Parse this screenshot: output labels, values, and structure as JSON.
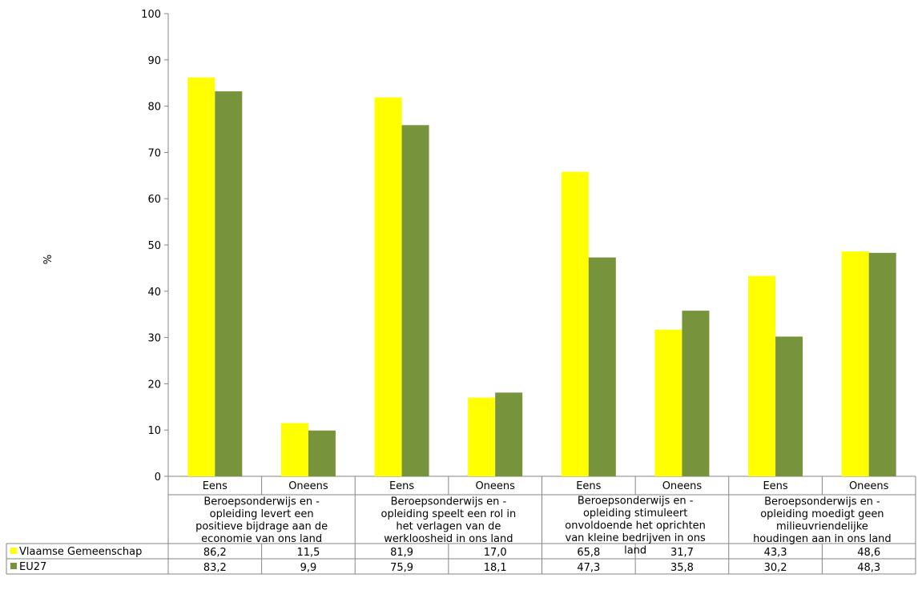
{
  "chart_data": {
    "type": "bar",
    "ylabel": "%",
    "ylim": [
      0,
      100
    ],
    "yticks": [
      0,
      10,
      20,
      30,
      40,
      50,
      60,
      70,
      80,
      90,
      100
    ],
    "groups": [
      {
        "label": "Beroepsonderwijs en -opleiding levert een positieve bijdrage aan de economie van ons land",
        "lines": [
          "Beroepsonderwijs en -",
          "opleiding levert een",
          "positieve bijdrage aan de",
          "economie van ons land"
        ]
      },
      {
        "label": "Beroepsonderwijs en -opleiding speelt een rol in het verlagen van de werkloosheid in ons land",
        "lines": [
          "Beroepsonderwijs en -",
          "opleiding speelt een rol in",
          "het verlagen van de",
          "werkloosheid in ons land"
        ]
      },
      {
        "label": "Beroepsonderwijs en -opleiding stimuleert onvoldoende het oprichten van kleine bedrijven in ons land",
        "lines": [
          "Beroepsonderwijs en -",
          "opleiding stimuleert",
          "onvoldoende het oprichten",
          "van kleine bedrijven in ons",
          "land"
        ]
      },
      {
        "label": "Beroepsonderwijs en -opleiding moedigt geen milieuvriendelijke houdingen aan in ons land",
        "lines": [
          "Beroepsonderwijs en -",
          "opleiding moedigt geen",
          "milieuvriendelijke",
          "houdingen aan in ons land"
        ]
      }
    ],
    "categories": [
      "Eens",
      "Oneens",
      "Eens",
      "Oneens",
      "Eens",
      "Oneens",
      "Eens",
      "Oneens"
    ],
    "series": [
      {
        "name": "Vlaamse Gemeenschap",
        "color": "#ffff00",
        "values": [
          86.2,
          11.5,
          81.9,
          17.0,
          65.8,
          31.7,
          43.3,
          48.6
        ],
        "labels": [
          "86,2",
          "11,5",
          "81,9",
          "17,0",
          "65,8",
          "31,7",
          "43,3",
          "48,6"
        ]
      },
      {
        "name": "EU27",
        "color": "#77933c",
        "values": [
          83.2,
          9.9,
          75.9,
          18.1,
          47.3,
          35.8,
          30.2,
          48.3
        ],
        "labels": [
          "83,2",
          "9,9",
          "75,9",
          "18,1",
          "47,3",
          "35,8",
          "30,2",
          "48,3"
        ]
      }
    ]
  }
}
